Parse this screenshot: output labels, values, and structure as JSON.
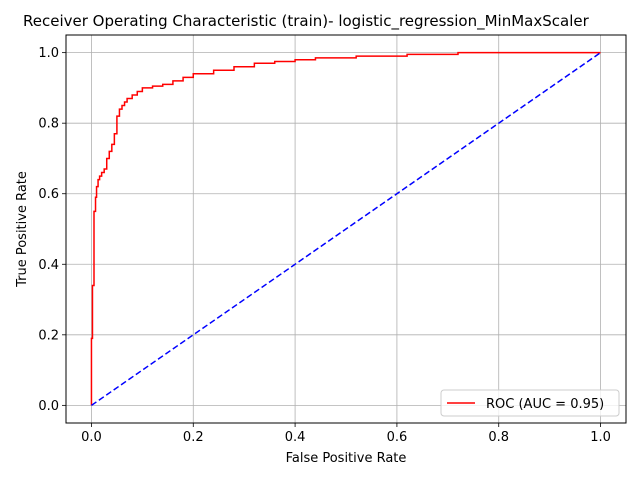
{
  "chart_data": {
    "type": "line",
    "title": "Receiver Operating Characteristic (train)- logistic_regression_MinMaxScaler",
    "xlabel": "False Positive Rate",
    "ylabel": "True Positive Rate",
    "xlim": [
      -0.05,
      1.05
    ],
    "ylim": [
      -0.05,
      1.05
    ],
    "xticks": [
      "0.0",
      "0.2",
      "0.4",
      "0.6",
      "0.8",
      "1.0"
    ],
    "yticks": [
      "0.0",
      "0.2",
      "0.4",
      "0.6",
      "0.8",
      "1.0"
    ],
    "grid": true,
    "legend_position": "lower-right",
    "series": [
      {
        "name": "ROC (AUC = 0.95)",
        "color": "#ff0000",
        "style": "solid",
        "x": [
          0.0,
          0.0,
          0.002,
          0.002,
          0.005,
          0.005,
          0.008,
          0.008,
          0.01,
          0.01,
          0.013,
          0.013,
          0.016,
          0.016,
          0.02,
          0.02,
          0.025,
          0.025,
          0.03,
          0.03,
          0.035,
          0.035,
          0.04,
          0.04,
          0.045,
          0.045,
          0.05,
          0.05,
          0.055,
          0.055,
          0.06,
          0.06,
          0.065,
          0.065,
          0.07,
          0.07,
          0.08,
          0.08,
          0.09,
          0.09,
          0.1,
          0.1,
          0.12,
          0.12,
          0.14,
          0.14,
          0.16,
          0.16,
          0.18,
          0.18,
          0.2,
          0.2,
          0.24,
          0.24,
          0.28,
          0.28,
          0.32,
          0.32,
          0.36,
          0.36,
          0.4,
          0.4,
          0.44,
          0.44,
          0.52,
          0.52,
          0.62,
          0.62,
          0.72,
          0.72,
          1.0
        ],
        "y": [
          0.0,
          0.19,
          0.19,
          0.34,
          0.34,
          0.55,
          0.55,
          0.59,
          0.59,
          0.62,
          0.62,
          0.64,
          0.64,
          0.65,
          0.65,
          0.66,
          0.66,
          0.67,
          0.67,
          0.7,
          0.7,
          0.72,
          0.72,
          0.74,
          0.74,
          0.77,
          0.77,
          0.82,
          0.82,
          0.84,
          0.84,
          0.85,
          0.85,
          0.86,
          0.86,
          0.87,
          0.87,
          0.88,
          0.88,
          0.89,
          0.89,
          0.9,
          0.9,
          0.905,
          0.905,
          0.91,
          0.91,
          0.92,
          0.92,
          0.93,
          0.93,
          0.94,
          0.94,
          0.95,
          0.95,
          0.96,
          0.96,
          0.97,
          0.97,
          0.975,
          0.975,
          0.98,
          0.98,
          0.985,
          0.985,
          0.99,
          0.99,
          0.995,
          0.995,
          1.0,
          1.0
        ]
      },
      {
        "name": "",
        "color": "#0000ff",
        "style": "dashed",
        "x": [
          0.0,
          1.0
        ],
        "y": [
          0.0,
          1.0
        ]
      }
    ]
  }
}
